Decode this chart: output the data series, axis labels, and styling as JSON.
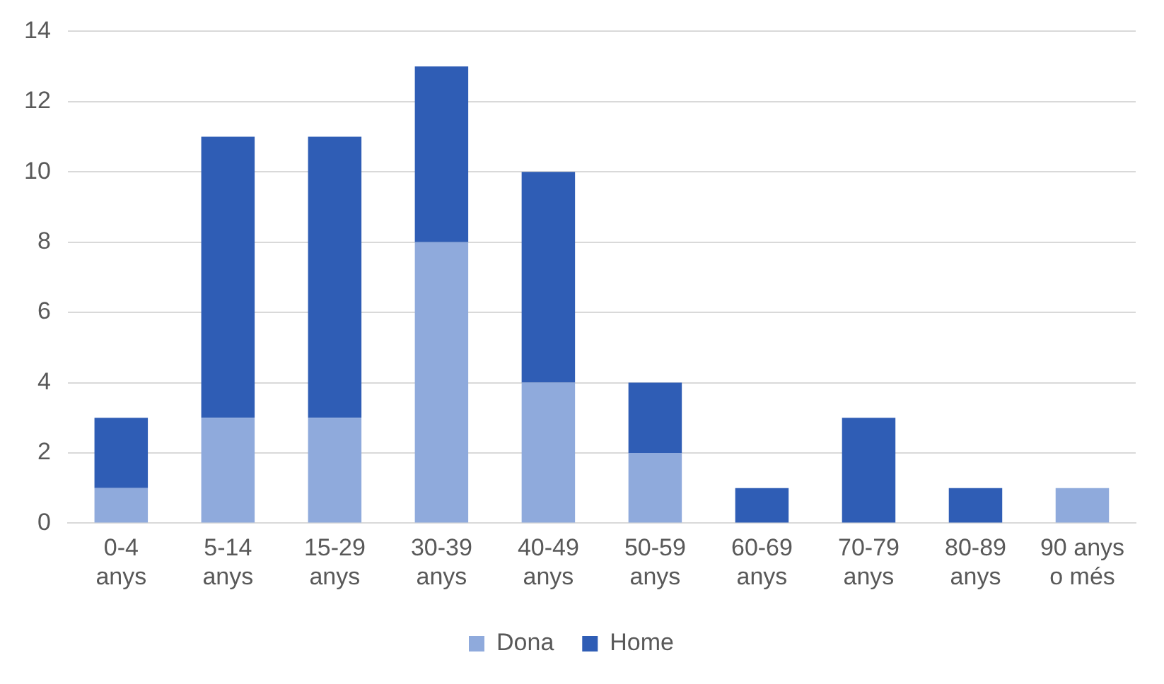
{
  "chart_data": {
    "type": "bar",
    "stacked": true,
    "categories": [
      "0-4 anys",
      "5-14 anys",
      "15-29 anys",
      "30-39 anys",
      "40-49 anys",
      "50-59 anys",
      "60-69 anys",
      "70-79 anys",
      "80-89 anys",
      "90 anys o més"
    ],
    "series": [
      {
        "name": "Dona",
        "color": "#8faadc",
        "values": [
          1,
          3,
          3,
          8,
          4,
          2,
          0,
          0,
          0,
          1
        ]
      },
      {
        "name": "Home",
        "color": "#2f5db5",
        "values": [
          2,
          8,
          8,
          5,
          6,
          2,
          1,
          3,
          1,
          0
        ]
      }
    ],
    "ylim": [
      0,
      14
    ],
    "yticks": [
      0,
      2,
      4,
      6,
      8,
      10,
      12,
      14
    ],
    "grid": "y",
    "legend": "bottom"
  }
}
